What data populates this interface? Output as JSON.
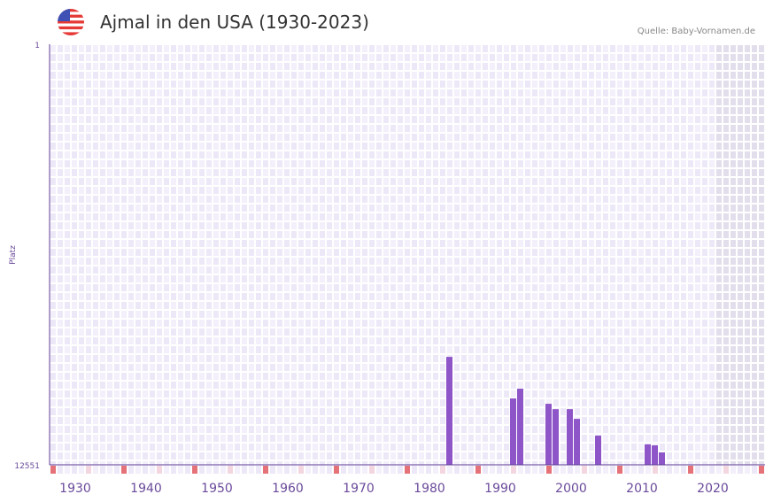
{
  "title": "Ajmal in den USA (1930-2023)",
  "source": "Quelle: Baby-Vornamen.de",
  "flag_icon": "us-flag-icon",
  "colors": {
    "bar": "#8e55c8",
    "axis": "#5b3a94",
    "marker_red": "#e57278",
    "marker_pink": "#f3d6e0",
    "grid_a": "#ede8f8",
    "grid_b": "#f3effb",
    "future": "#e3deec"
  },
  "chart_data": {
    "type": "bar",
    "title": "Ajmal in den USA (1930-2023)",
    "xlabel": "",
    "ylabel": "Platz",
    "ylim": [
      12551,
      1
    ],
    "y_ticks": [
      "1",
      "12551"
    ],
    "xlim": [
      1928,
      2028
    ],
    "x_ticks": [
      "1930",
      "1940",
      "1950",
      "1960",
      "1970",
      "1980",
      "1990",
      "2000",
      "2010",
      "2020"
    ],
    "future_from": 2022,
    "years": [
      1984,
      1993,
      1994,
      1998,
      1999,
      2001,
      2002,
      2005,
      2012,
      2013,
      2014
    ],
    "values": [
      9330,
      10570,
      10280,
      10730,
      10890,
      10890,
      11180,
      11680,
      11940,
      11970,
      12180
    ]
  }
}
